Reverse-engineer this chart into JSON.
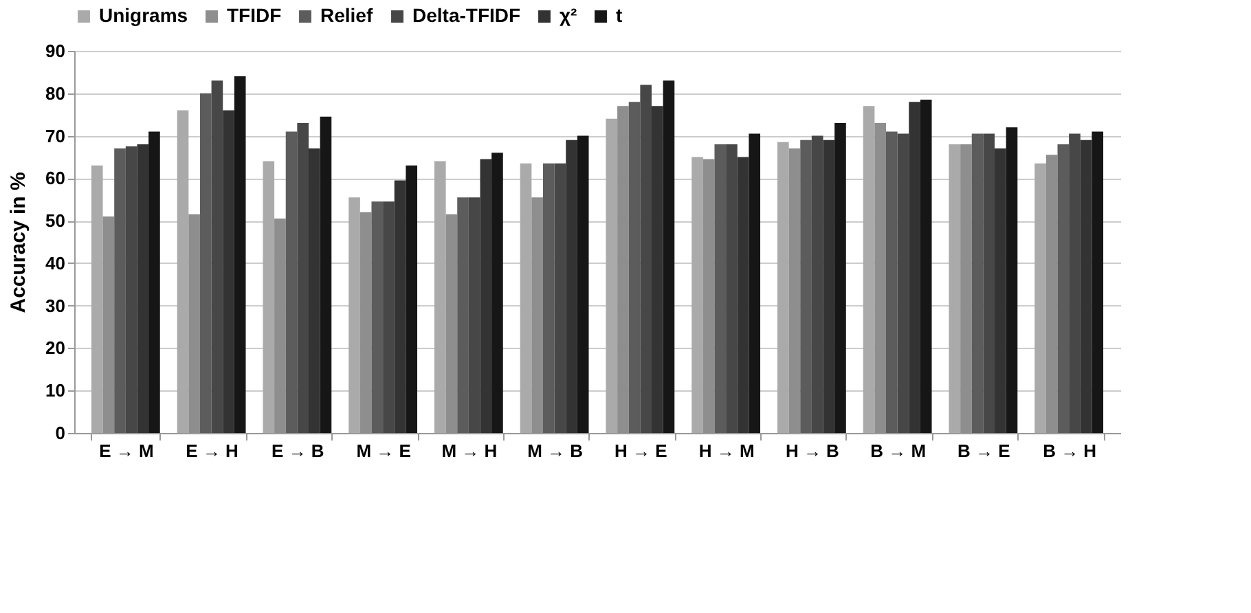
{
  "chart_data": {
    "type": "bar",
    "ylabel": "Accuracy in %",
    "categories": [
      "E → M",
      "E → H",
      "E → B",
      "M → E",
      "M → H",
      "M → B",
      "H → E",
      "H → M",
      "H → B",
      "B → M",
      "B → E",
      "B → H"
    ],
    "series": [
      {
        "name": "Unigrams",
        "color": "#aaaaaa",
        "values": [
          63,
          76,
          64,
          55.5,
          64,
          63.5,
          74,
          65,
          68.5,
          77,
          68,
          63.5
        ]
      },
      {
        "name": "TFIDF",
        "color": "#8e8e8e",
        "values": [
          51,
          51.5,
          50.5,
          52,
          51.5,
          55.5,
          77,
          64.5,
          67,
          73,
          68,
          65.5
        ]
      },
      {
        "name": "Relief",
        "color": "#5c5c5c",
        "values": [
          67,
          80,
          71,
          54.5,
          55.5,
          63.5,
          78,
          68,
          69,
          71,
          70.5,
          68
        ]
      },
      {
        "name": "Delta-TFIDF",
        "color": "#474747",
        "values": [
          67.5,
          83,
          73,
          54.5,
          55.5,
          63.5,
          82,
          68,
          70,
          70.5,
          70.5,
          70.5
        ]
      },
      {
        "name": "χ²",
        "color": "#333333",
        "values": [
          68,
          76,
          67,
          59.5,
          64.5,
          69,
          77,
          65,
          69,
          78,
          67,
          69
        ]
      },
      {
        "name": "t",
        "color": "#161616",
        "values": [
          71,
          84,
          74.5,
          63,
          66,
          70,
          83,
          70.5,
          73,
          78.5,
          72,
          71
        ]
      }
    ],
    "ylim": [
      0,
      90
    ],
    "yticks": [
      0,
      10,
      20,
      30,
      40,
      50,
      60,
      70,
      80,
      90
    ],
    "grid": "y",
    "legend": "top"
  }
}
